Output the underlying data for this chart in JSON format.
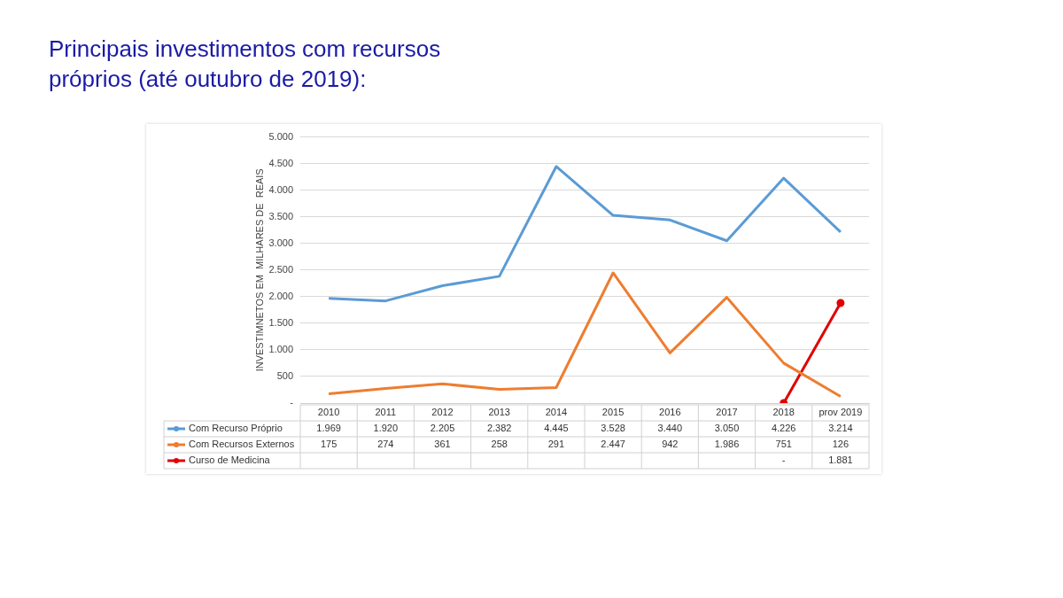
{
  "chart_data": {
    "type": "line",
    "title": "Principais investimentos com recursos próprios (até outubro de 2019):",
    "ylabel": "INVESTIMNETOS EM  MILHARES DE  REAIS",
    "categories": [
      "2010",
      "2011",
      "2012",
      "2013",
      "2014",
      "2015",
      "2016",
      "2017",
      "2018",
      "prov 2019"
    ],
    "series": [
      {
        "name": "Com Recurso Próprio",
        "color": "#5b9bd5",
        "values": [
          1969,
          1920,
          2205,
          2382,
          4445,
          3528,
          3440,
          3050,
          4226,
          3214
        ],
        "value_labels": [
          "1.969",
          "1.920",
          "2.205",
          "2.382",
          "4.445",
          "3.528",
          "3.440",
          "3.050",
          "4.226",
          "3.214"
        ]
      },
      {
        "name": "Com Recursos Externos",
        "color": "#ed7d31",
        "values": [
          175,
          274,
          361,
          258,
          291,
          2447,
          942,
          1986,
          751,
          126
        ],
        "value_labels": [
          "175",
          "274",
          "361",
          "258",
          "291",
          "2.447",
          "942",
          "1.986",
          "751",
          "126"
        ]
      },
      {
        "name": "Curso de Medicina",
        "color": "#e00000",
        "marker": "circle",
        "values": [
          null,
          null,
          null,
          null,
          null,
          null,
          null,
          null,
          0,
          1881
        ],
        "value_labels": [
          null,
          null,
          null,
          null,
          null,
          null,
          null,
          null,
          "-",
          "1.881"
        ]
      }
    ],
    "ylim": [
      0,
      5000
    ],
    "yticks": [
      {
        "value": 0,
        "label": "-"
      },
      500,
      {
        "value": 1000,
        "label": "1.000"
      },
      {
        "value": 1500,
        "label": "1.500"
      },
      {
        "value": 2000,
        "label": "2.000"
      },
      {
        "value": 2500,
        "label": "2.500"
      },
      {
        "value": 3000,
        "label": "3.000"
      },
      {
        "value": 3500,
        "label": "3.500"
      },
      {
        "value": 4000,
        "label": "4.000"
      },
      {
        "value": 4500,
        "label": "4.500"
      },
      {
        "value": 5000,
        "label": "5.000"
      }
    ],
    "grid": "y",
    "legend": "bottom",
    "marker": "none",
    "line_style": "solid"
  }
}
